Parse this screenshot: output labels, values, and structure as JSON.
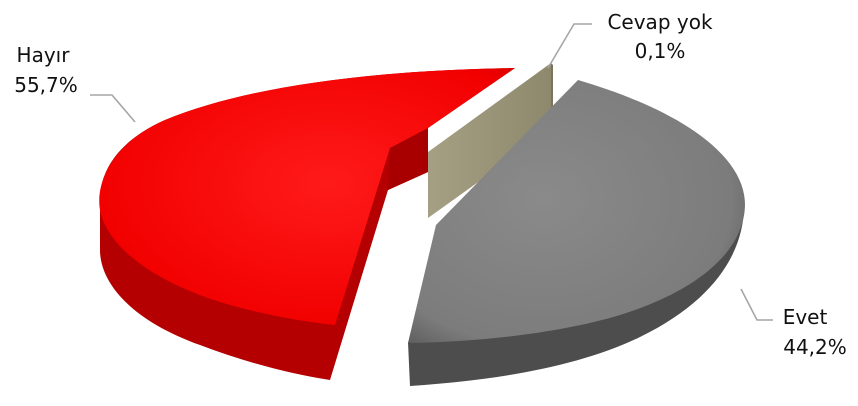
{
  "chart_data": {
    "type": "pie",
    "variant": "3d-exploded",
    "slices": [
      {
        "label": "Evet",
        "value": 44.2,
        "value_label": "44,2%",
        "color": "#808080"
      },
      {
        "label": "Cevap yok",
        "value": 0.1,
        "value_label": "0,1%",
        "color": "#9a9478"
      },
      {
        "label": "Hayır",
        "value": 55.7,
        "value_label": "55,7%",
        "color": "#ff0000"
      }
    ],
    "grid": false,
    "legend": "none"
  }
}
